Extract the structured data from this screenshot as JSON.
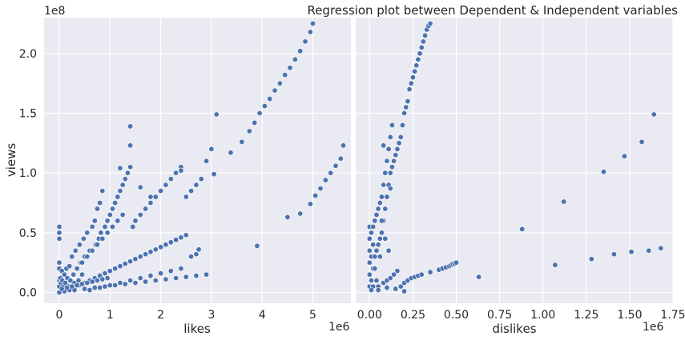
{
  "chart_data": [
    {
      "type": "scatter",
      "title": "",
      "xlabel": "likes",
      "ylabel": "views",
      "x_scale_label": "1e6",
      "y_scale_label": "1e8",
      "xlim": [
        -0.3,
        5.75
      ],
      "ylim": [
        -0.09,
        2.3
      ],
      "x_ticks": [
        "0",
        "1",
        "2",
        "3",
        "4",
        "5"
      ],
      "y_ticks": [
        "0.0",
        "0.5",
        "1.0",
        "1.5",
        "2.0"
      ],
      "grid": true,
      "marker_color": "#4C72B0",
      "series": [
        {
          "x": [
            0.0,
            0.0,
            0.0,
            0.0,
            0.0,
            0.0,
            0.0,
            0.02,
            0.03,
            0.05,
            0.06,
            0.08,
            0.1,
            0.12,
            0.14,
            0.16,
            0.18,
            0.2,
            0.22,
            0.25,
            0.28,
            0.3,
            0.32,
            0.35,
            0.38,
            0.4,
            0.42,
            0.45,
            0.48,
            0.5,
            0.55,
            0.6,
            0.65,
            0.7,
            0.72,
            0.75,
            0.78,
            0.8,
            0.82,
            0.85,
            0.9,
            0.95,
            1.0,
            1.05,
            1.1,
            1.15,
            1.2,
            1.25,
            1.3,
            1.35,
            1.4,
            1.45,
            1.5,
            1.6,
            1.7,
            1.8,
            1.9,
            2.0,
            2.1,
            2.2,
            2.3,
            2.4,
            2.5,
            2.6,
            2.7,
            2.8,
            2.9,
            3.0,
            0.3,
            0.4,
            0.5,
            0.6,
            0.7,
            0.8,
            0.9,
            1.0,
            1.1,
            1.2,
            1.3,
            1.4,
            1.5,
            1.6,
            1.7,
            1.8,
            1.9,
            2.0,
            2.1,
            2.2,
            2.3,
            2.4,
            2.5,
            2.6,
            2.7,
            2.75,
            0.35,
            0.45,
            0.55,
            0.65,
            0.75,
            0.85,
            0.95,
            1.05,
            1.15,
            1.25,
            0.6,
            0.8,
            1.0,
            1.2,
            1.4,
            1.6,
            1.8,
            2.0,
            2.2,
            2.4,
            1.4,
            1.4,
            1.2,
            1.6,
            1.8,
            2.4,
            3.1,
            3.38,
            3.6,
            3.75,
            3.85,
            3.95,
            4.05,
            4.15,
            4.25,
            4.35,
            4.45,
            4.55,
            4.65,
            4.75,
            4.85,
            4.95,
            5.0,
            4.5,
            4.75,
            4.95,
            5.05,
            5.15,
            5.25,
            5.35,
            5.45,
            5.55,
            5.6,
            3.9,
            3.05,
            0.0,
            0.1,
            0.2,
            0.3,
            0.5,
            0.7,
            0.9,
            1.1,
            1.3,
            1.5,
            1.7,
            1.9,
            2.1,
            2.3,
            2.5,
            2.7,
            2.9,
            0.05,
            0.15,
            0.25,
            0.35,
            0.45,
            0.55,
            0.65,
            0.75,
            0.85,
            0.95
          ],
          "y": [
            0.55,
            0.5,
            0.45,
            0.25,
            0.2,
            0.1,
            0.05,
            0.12,
            0.08,
            0.18,
            0.1,
            0.05,
            0.15,
            0.08,
            0.2,
            0.12,
            0.05,
            0.22,
            0.1,
            0.3,
            0.15,
            0.08,
            0.35,
            0.2,
            0.1,
            0.4,
            0.25,
            0.15,
            0.45,
            0.3,
            0.5,
            0.35,
            0.55,
            0.6,
            0.4,
            0.7,
            0.45,
            0.75,
            0.5,
            0.85,
            0.55,
            0.6,
            0.65,
            0.7,
            0.75,
            0.8,
            0.85,
            0.9,
            0.95,
            1.0,
            1.05,
            0.55,
            0.6,
            0.65,
            0.7,
            0.75,
            0.8,
            0.85,
            0.9,
            0.95,
            1.0,
            1.05,
            0.8,
            0.85,
            0.9,
            0.95,
            1.1,
            1.2,
            0.05,
            0.06,
            0.08,
            0.1,
            0.12,
            0.14,
            0.16,
            0.18,
            0.2,
            0.22,
            0.24,
            0.26,
            0.28,
            0.3,
            0.32,
            0.34,
            0.36,
            0.38,
            0.4,
            0.42,
            0.44,
            0.46,
            0.48,
            0.3,
            0.32,
            0.36,
            0.2,
            0.25,
            0.3,
            0.35,
            0.4,
            0.45,
            0.5,
            0.55,
            0.6,
            0.65,
            0.02,
            0.04,
            0.06,
            0.08,
            0.1,
            0.12,
            0.14,
            0.16,
            0.18,
            0.2,
            1.39,
            1.23,
            1.04,
            0.88,
            0.8,
            1.02,
            1.49,
            1.17,
            1.26,
            1.35,
            1.42,
            1.5,
            1.56,
            1.62,
            1.69,
            1.75,
            1.82,
            1.88,
            1.95,
            2.02,
            2.1,
            2.18,
            2.25,
            0.63,
            0.66,
            0.74,
            0.81,
            0.87,
            0.94,
            1.0,
            1.06,
            1.12,
            1.23,
            0.39,
            0.99,
            0.0,
            0.01,
            0.02,
            0.02,
            0.03,
            0.04,
            0.05,
            0.06,
            0.07,
            0.08,
            0.09,
            0.1,
            0.11,
            0.12,
            0.13,
            0.14,
            0.15,
            0.03,
            0.04,
            0.05,
            0.06,
            0.07,
            0.08,
            0.09,
            0.1,
            0.11,
            0.12
          ]
        }
      ]
    },
    {
      "type": "scatter",
      "title": "Regression plot between Dependent & Independent variables",
      "xlabel": "dislikes",
      "ylabel": "",
      "x_scale_label": "1e6",
      "y_scale_label": "",
      "xlim": [
        -0.08,
        1.75
      ],
      "ylim": [
        -0.09,
        2.3
      ],
      "x_ticks": [
        "0.00",
        "0.25",
        "0.50",
        "0.75",
        "1.00",
        "1.25",
        "1.50",
        "1.75"
      ],
      "y_ticks": [],
      "grid": true,
      "marker_color": "#4C72B0",
      "series": [
        {
          "x": [
            0.0,
            0.0,
            0.0,
            0.0,
            0.0,
            0.0,
            0.01,
            0.01,
            0.01,
            0.02,
            0.02,
            0.02,
            0.03,
            0.03,
            0.04,
            0.04,
            0.05,
            0.05,
            0.06,
            0.06,
            0.07,
            0.07,
            0.08,
            0.08,
            0.09,
            0.09,
            0.1,
            0.1,
            0.11,
            0.11,
            0.12,
            0.12,
            0.13,
            0.13,
            0.14,
            0.15,
            0.16,
            0.17,
            0.18,
            0.19,
            0.2,
            0.21,
            0.22,
            0.23,
            0.24,
            0.25,
            0.26,
            0.27,
            0.28,
            0.29,
            0.3,
            0.31,
            0.32,
            0.33,
            0.34,
            0.35,
            0.05,
            0.08,
            0.1,
            0.12,
            0.14,
            0.16,
            0.18,
            0.2,
            0.22,
            0.24,
            0.26,
            0.28,
            0.3,
            0.35,
            0.4,
            0.42,
            0.44,
            0.46,
            0.47,
            0.48,
            0.49,
            0.5,
            0.63,
            0.88,
            1.07,
            1.12,
            1.28,
            1.35,
            1.41,
            1.47,
            1.51,
            1.57,
            1.61,
            1.64,
            1.68,
            0.05,
            0.1,
            0.15,
            0.2,
            0.08,
            0.12,
            0.03,
            0.06,
            0.09,
            0.02,
            0.04,
            0.07,
            0.01,
            0.11
          ],
          "y": [
            0.55,
            0.45,
            0.35,
            0.25,
            0.15,
            0.05,
            0.5,
            0.3,
            0.1,
            0.55,
            0.4,
            0.2,
            0.6,
            0.3,
            0.65,
            0.35,
            0.7,
            0.4,
            0.75,
            0.45,
            0.8,
            0.5,
            0.9,
            0.6,
            1.0,
            0.7,
            1.1,
            0.8,
            1.2,
            0.9,
            1.3,
            1.0,
            1.4,
            1.05,
            1.1,
            1.15,
            1.2,
            1.25,
            1.3,
            1.4,
            1.5,
            1.55,
            1.6,
            1.7,
            1.75,
            1.8,
            1.85,
            1.9,
            1.95,
            2.0,
            2.05,
            2.1,
            2.15,
            2.2,
            2.23,
            2.25,
            0.05,
            0.08,
            0.1,
            0.12,
            0.15,
            0.18,
            0.05,
            0.08,
            0.1,
            0.12,
            0.13,
            0.14,
            0.15,
            0.17,
            0.19,
            0.2,
            0.21,
            0.22,
            0.23,
            0.24,
            0.24,
            0.25,
            0.13,
            0.53,
            0.23,
            0.76,
            0.28,
            1.01,
            0.32,
            1.14,
            0.34,
            1.26,
            0.35,
            1.49,
            0.37,
            0.02,
            0.04,
            0.03,
            0.01,
            1.23,
            0.87,
            0.2,
            0.3,
            0.45,
            0.05,
            0.1,
            0.6,
            0.02,
            0.35
          ]
        }
      ]
    }
  ]
}
